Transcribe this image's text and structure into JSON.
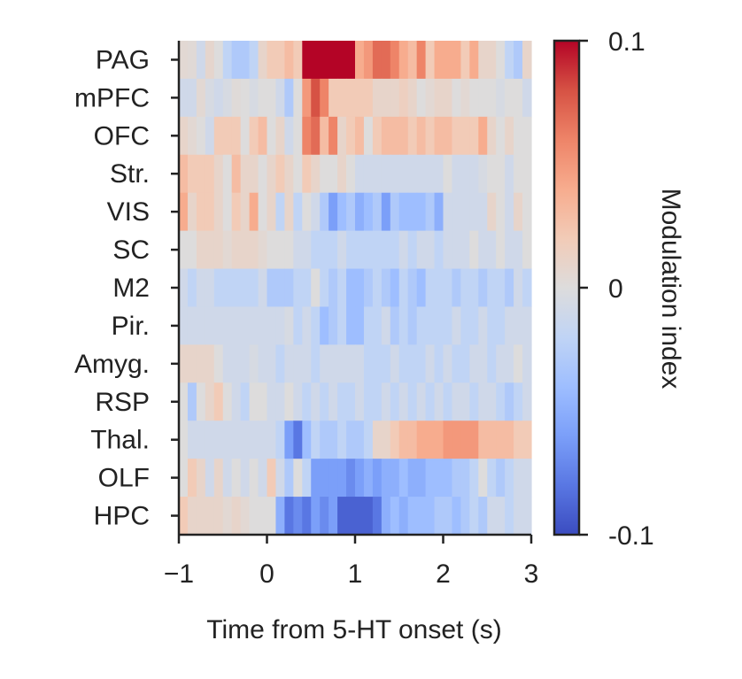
{
  "chart_data": {
    "type": "heatmap",
    "title": "",
    "xlabel": "Time from 5-HT onset (s)",
    "ylabel": "",
    "colorbar_label": "Modulation index",
    "xlim": [
      -1,
      3
    ],
    "x_ticks": [
      -1,
      0,
      1,
      2,
      3
    ],
    "x_tick_labels": [
      "−1",
      "0",
      "1",
      "2",
      "3"
    ],
    "bin_width": 0.1,
    "clim": [
      -0.1,
      0.1
    ],
    "colorbar_ticks": [
      0.1,
      0,
      -0.1
    ],
    "colorbar_tick_labels": [
      "0.1",
      "0",
      "-0.1"
    ],
    "colormap": "coolwarm",
    "colormap_stops": [
      "#3b4cc0",
      "#5977e3",
      "#7b9ff9",
      "#9ebeff",
      "#c0d4f5",
      "#dddcdc",
      "#f2cbb7",
      "#f7ac8e",
      "#ee8468",
      "#d65244",
      "#b40426"
    ],
    "regions": [
      "PAG",
      "mPFC",
      "OFC",
      "Str.",
      "VIS",
      "SC",
      "M2",
      "Pir.",
      "Amyg.",
      "RSP",
      "Thal.",
      "OLF",
      "HPC"
    ],
    "values": [
      [
        0.005,
        0.003,
        -0.01,
        0.008,
        0.0,
        -0.02,
        -0.03,
        -0.03,
        -0.02,
        0.01,
        0.02,
        0.02,
        0.03,
        0.02,
        0.12,
        0.12,
        0.12,
        0.12,
        0.12,
        0.12,
        0.04,
        0.05,
        0.07,
        0.07,
        0.06,
        0.04,
        0.03,
        0.06,
        0.02,
        0.04,
        0.04,
        0.04,
        0.02,
        0.04,
        0.01,
        0.01,
        0.0,
        -0.02,
        -0.03,
        0.01
      ],
      [
        -0.01,
        -0.01,
        0.005,
        -0.005,
        -0.01,
        -0.005,
        0.002,
        0.0,
        -0.005,
        0.0,
        0.0,
        -0.01,
        -0.03,
        0.0,
        0.05,
        0.08,
        0.06,
        0.02,
        0.02,
        0.02,
        0.02,
        0.02,
        0.01,
        0.01,
        0.01,
        0.015,
        0.01,
        0.0,
        0.005,
        0.01,
        0.01,
        0.0,
        0.005,
        0.0,
        0.0,
        0.0,
        -0.005,
        0.0,
        0.0,
        -0.01
      ],
      [
        0.01,
        0.005,
        0.0,
        -0.01,
        0.02,
        0.02,
        0.02,
        0.0,
        0.02,
        0.03,
        0.0,
        0.01,
        -0.01,
        0.0,
        0.06,
        0.07,
        0.03,
        0.06,
        0.01,
        0.02,
        0.03,
        0.0,
        0.02,
        0.03,
        0.03,
        0.03,
        0.02,
        0.03,
        0.02,
        0.03,
        0.03,
        0.02,
        0.02,
        0.02,
        0.04,
        0.01,
        0.0,
        0.01,
        0.0,
        0.0
      ],
      [
        0.03,
        0.02,
        0.02,
        0.02,
        0.01,
        0.0,
        0.03,
        0.01,
        0.01,
        0.0,
        0.01,
        0.02,
        0.01,
        0.0,
        0.02,
        0.01,
        0.0,
        0.0,
        0.01,
        0.0,
        -0.01,
        -0.01,
        -0.01,
        -0.01,
        -0.01,
        -0.01,
        -0.01,
        -0.01,
        -0.01,
        -0.01,
        0.0,
        -0.01,
        -0.01,
        -0.01,
        -0.005,
        0.0,
        0.0,
        -0.01,
        0.0,
        0.0
      ],
      [
        0.04,
        0.01,
        0.02,
        0.02,
        0.01,
        0.0,
        0.02,
        0.01,
        0.04,
        0.0,
        0.01,
        -0.02,
        0.01,
        -0.02,
        0.0,
        -0.01,
        -0.03,
        -0.06,
        -0.04,
        -0.03,
        -0.05,
        -0.04,
        -0.03,
        -0.06,
        -0.03,
        -0.04,
        -0.04,
        -0.04,
        -0.03,
        -0.05,
        -0.01,
        -0.01,
        -0.01,
        -0.01,
        -0.01,
        0.01,
        0.0,
        -0.01,
        0.01,
        0.0
      ],
      [
        0.0,
        0.0,
        0.01,
        0.01,
        0.01,
        0.005,
        0.01,
        0.01,
        0.01,
        0.005,
        0.0,
        0.0,
        0.0,
        -0.01,
        -0.01,
        -0.02,
        -0.02,
        -0.02,
        -0.01,
        -0.02,
        -0.02,
        -0.02,
        -0.02,
        -0.02,
        -0.02,
        -0.01,
        -0.02,
        -0.01,
        -0.01,
        -0.02,
        -0.01,
        -0.01,
        -0.01,
        0.0,
        -0.01,
        -0.01,
        0.0,
        -0.01,
        -0.01,
        0.0
      ],
      [
        -0.01,
        -0.02,
        -0.01,
        -0.01,
        -0.02,
        -0.02,
        -0.02,
        -0.02,
        -0.02,
        -0.01,
        -0.03,
        -0.03,
        -0.03,
        -0.02,
        -0.02,
        0.0,
        -0.02,
        -0.03,
        -0.02,
        -0.04,
        -0.04,
        -0.03,
        -0.02,
        -0.03,
        -0.04,
        -0.02,
        -0.03,
        -0.04,
        -0.02,
        -0.02,
        -0.02,
        -0.03,
        -0.02,
        -0.02,
        -0.03,
        -0.02,
        -0.02,
        -0.03,
        -0.01,
        -0.02
      ],
      [
        -0.01,
        -0.01,
        -0.01,
        -0.01,
        -0.01,
        -0.01,
        -0.01,
        -0.01,
        -0.01,
        -0.01,
        -0.01,
        -0.01,
        -0.005,
        -0.02,
        -0.01,
        -0.02,
        -0.04,
        -0.03,
        -0.02,
        -0.04,
        -0.04,
        -0.02,
        -0.02,
        -0.01,
        -0.03,
        -0.02,
        -0.03,
        -0.02,
        -0.02,
        -0.02,
        -0.02,
        -0.01,
        -0.02,
        -0.02,
        -0.01,
        -0.02,
        -0.02,
        -0.01,
        -0.01,
        -0.01
      ],
      [
        0.01,
        0.01,
        0.01,
        0.01,
        0.0,
        -0.01,
        -0.01,
        -0.01,
        -0.005,
        -0.01,
        -0.01,
        -0.02,
        -0.01,
        -0.01,
        -0.01,
        -0.02,
        -0.01,
        -0.01,
        -0.01,
        -0.01,
        -0.01,
        -0.02,
        -0.02,
        -0.02,
        -0.01,
        -0.02,
        -0.02,
        -0.02,
        -0.01,
        -0.02,
        -0.01,
        -0.02,
        -0.02,
        -0.01,
        -0.01,
        -0.02,
        -0.01,
        -0.01,
        0.0,
        -0.01
      ],
      [
        0.0,
        -0.03,
        0.0,
        0.01,
        0.02,
        0.0,
        -0.01,
        -0.02,
        0.0,
        0.0,
        -0.01,
        -0.01,
        0.0,
        -0.01,
        -0.02,
        -0.01,
        -0.02,
        -0.01,
        -0.02,
        -0.02,
        -0.01,
        -0.02,
        -0.02,
        -0.01,
        -0.02,
        -0.01,
        -0.02,
        -0.01,
        -0.02,
        -0.01,
        -0.02,
        -0.01,
        -0.01,
        -0.02,
        -0.01,
        -0.01,
        -0.02,
        -0.03,
        -0.02,
        -0.01
      ],
      [
        0.0,
        -0.01,
        -0.01,
        -0.01,
        -0.01,
        -0.01,
        -0.01,
        -0.01,
        -0.01,
        -0.01,
        -0.01,
        -0.02,
        -0.06,
        -0.08,
        -0.04,
        -0.02,
        -0.03,
        -0.03,
        -0.02,
        -0.03,
        -0.03,
        -0.02,
        0.01,
        0.01,
        0.02,
        0.03,
        0.03,
        0.04,
        0.04,
        0.04,
        0.05,
        0.05,
        0.05,
        0.05,
        0.03,
        0.03,
        0.03,
        0.03,
        0.02,
        0.02
      ],
      [
        0.0,
        0.02,
        0.01,
        -0.01,
        0.01,
        -0.01,
        0.0,
        -0.01,
        0.0,
        -0.01,
        0.02,
        -0.01,
        -0.03,
        0.0,
        -0.02,
        -0.06,
        -0.06,
        -0.06,
        -0.06,
        -0.07,
        -0.06,
        -0.05,
        -0.06,
        -0.05,
        -0.05,
        -0.04,
        -0.05,
        -0.05,
        -0.04,
        -0.04,
        -0.04,
        -0.03,
        -0.03,
        -0.02,
        0.0,
        -0.02,
        -0.03,
        -0.02,
        -0.01,
        -0.01
      ],
      [
        0.02,
        0.01,
        0.01,
        0.01,
        0.01,
        0.005,
        0.01,
        0.005,
        0.0,
        0.0,
        0.0,
        -0.05,
        -0.08,
        -0.07,
        -0.08,
        -0.06,
        -0.07,
        -0.06,
        -0.09,
        -0.09,
        -0.09,
        -0.09,
        -0.08,
        -0.05,
        -0.04,
        -0.05,
        -0.04,
        -0.04,
        -0.04,
        -0.03,
        -0.03,
        -0.04,
        -0.03,
        -0.02,
        -0.03,
        -0.01,
        -0.01,
        -0.02,
        -0.01,
        -0.01
      ]
    ]
  }
}
